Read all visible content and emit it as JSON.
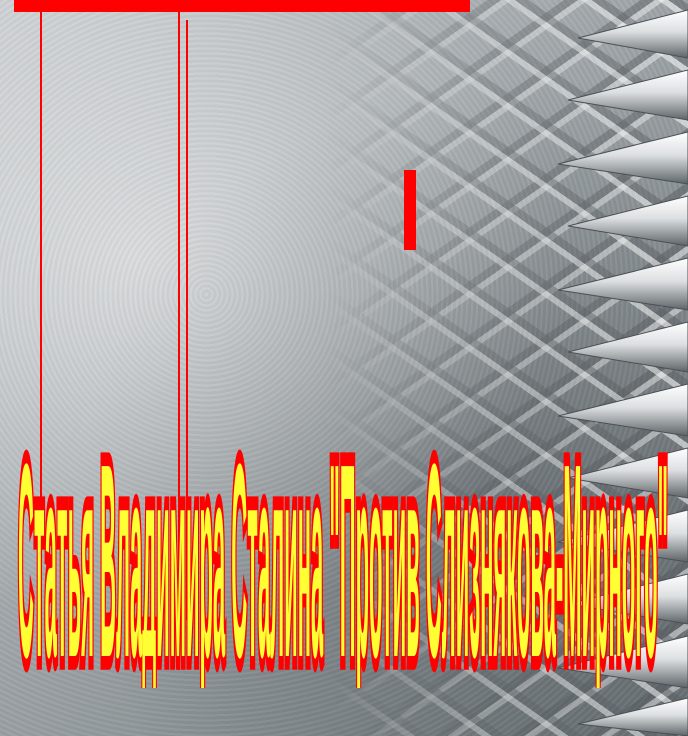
{
  "slide": {
    "title": "Статья Владимира Сталина \"Против Слизнякова-Мирного\"",
    "colors": {
      "title_fill": "#ffff33",
      "title_outline": "#ff0000",
      "accent": "#ff0000"
    },
    "decoration_icons": [
      "spike-icon",
      "diamond-plate-texture"
    ]
  }
}
